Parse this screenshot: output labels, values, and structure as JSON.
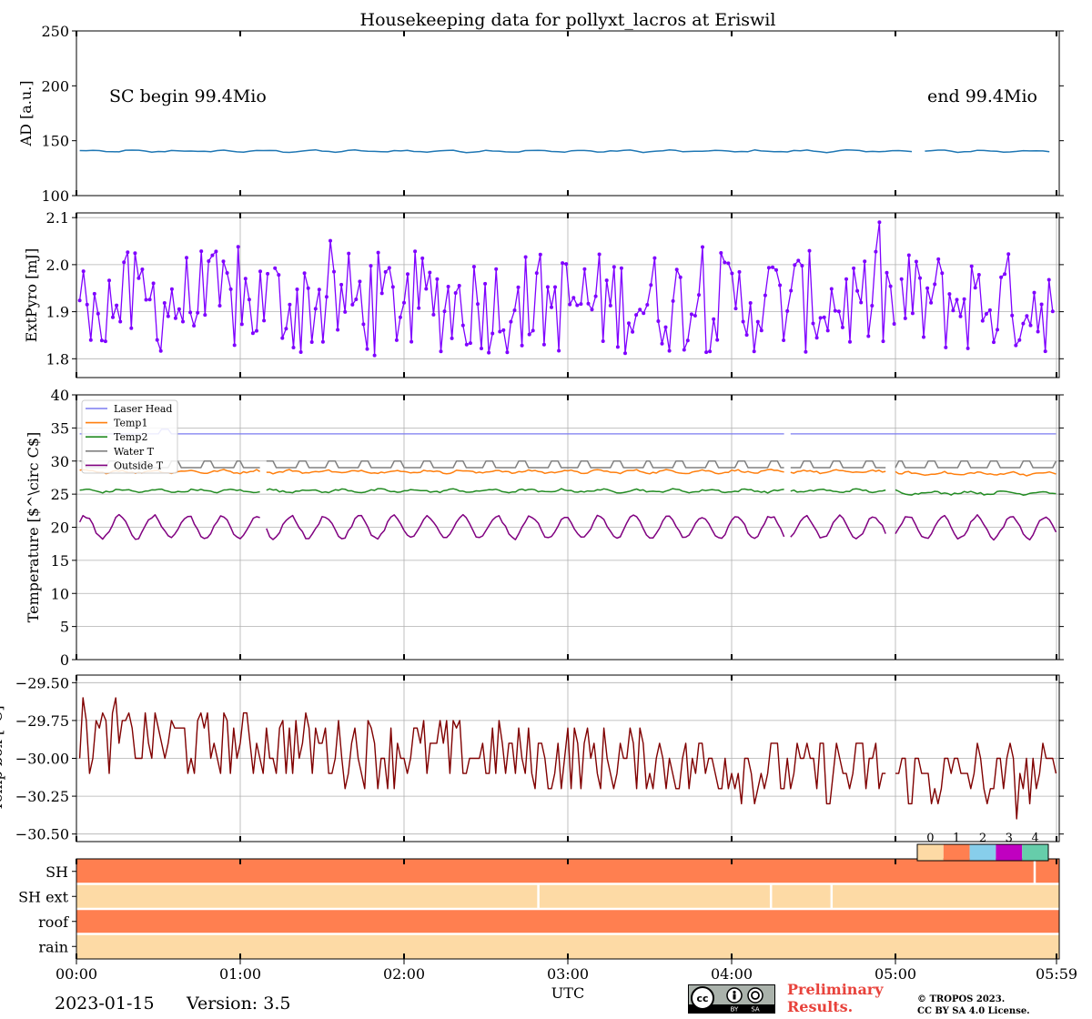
{
  "title": "Housekeeping data for pollyxt_lacros at Eriswil",
  "time_axis": {
    "xlabel": "UTC",
    "ticks": [
      "00:00",
      "01:00",
      "02:00",
      "03:00",
      "04:00",
      "05:00",
      "05:59"
    ]
  },
  "footer": {
    "date": "2023-01-15",
    "version": "Version: 3.5",
    "preliminary_line1": "Preliminary",
    "preliminary_line2": "Results.",
    "copyright_line1": "© TROPOS 2023.",
    "copyright_line2": "CC BY SA 4.0 License.",
    "license_badge": "cc BY SA"
  },
  "colors": {
    "ad": "#1f77b4",
    "pyro": "#7f00ff",
    "laser_head": "#7b7bf0",
    "temp1": "#ff7f0e",
    "temp2": "#228b22",
    "water_t": "#808080",
    "outside_t": "#800080",
    "temp_box": "#800000",
    "state0": "#fddaa5",
    "state1": "#ff7f50",
    "state2": "#87ceeb",
    "state3": "#c000c0",
    "state4": "#66cdaa"
  },
  "chart_data": [
    {
      "type": "line",
      "panel": "ad",
      "ylabel": "AD [a.u.]",
      "ylim": [
        100,
        250
      ],
      "yticks": [
        100,
        150,
        200,
        250
      ],
      "annotations": [
        "SC begin 99.4Mio",
        "end 99.4Mio"
      ],
      "series": [
        {
          "name": "AD",
          "mean": 140.5,
          "amplitude": 1.2,
          "gap": [
            5.13,
            5.17
          ]
        }
      ]
    },
    {
      "type": "line",
      "panel": "pyro",
      "ylabel": "ExtPyro [mJ]",
      "ylim": [
        1.76,
        2.11
      ],
      "yticks": [
        "1.8",
        "1.9",
        "2.0",
        "2.1"
      ],
      "y_values": [
        1.8,
        1.9,
        2.0,
        2.1
      ],
      "series": [
        {
          "name": "ExtPyro",
          "mean": 1.92,
          "range": [
            1.77,
            2.09
          ],
          "markers": true,
          "gaps": [
            [
              1.17,
              1.2
            ],
            [
              5.0,
              5.02
            ]
          ]
        }
      ]
    },
    {
      "type": "line",
      "panel": "temperature",
      "ylabel": "Temperature [$^\\circ C$]",
      "ylim": [
        0,
        40
      ],
      "yticks": [
        0,
        5,
        10,
        15,
        20,
        25,
        30,
        35,
        40
      ],
      "legend": [
        "Laser Head",
        "Temp1",
        "Temp2",
        "Water T",
        "Outside T"
      ],
      "series": [
        {
          "name": "Laser Head",
          "mean": 34.1,
          "peak": 34.8
        },
        {
          "name": "Temp1",
          "mean": 28.4,
          "range": [
            27.8,
            29.0
          ]
        },
        {
          "name": "Temp2",
          "mean": 25.5,
          "range": [
            24.9,
            26.0
          ]
        },
        {
          "name": "Water T",
          "base": 29.0,
          "pulse_peak": 30.0
        },
        {
          "name": "Outside T",
          "mean": 20.0,
          "range": [
            17.5,
            22.0
          ]
        }
      ]
    },
    {
      "type": "line",
      "panel": "temp_box",
      "ylabel": "Temp box [°C]",
      "ylim": [
        -30.55,
        -29.45
      ],
      "yticks": [
        "−29.50",
        "−29.75",
        "−30.00",
        "−30.25",
        "−30.50"
      ],
      "y_values": [
        -29.5,
        -29.75,
        -30.0,
        -30.25,
        -30.5
      ],
      "series": [
        {
          "name": "Temp box",
          "start_mean": -29.85,
          "end_mean": -30.15,
          "range": [
            -30.48,
            -29.5
          ]
        }
      ]
    },
    {
      "type": "heatmap",
      "panel": "status",
      "rows": [
        "SH",
        "SH ext",
        "roof",
        "rain"
      ],
      "colorbar_labels": [
        "0",
        "1",
        "2",
        "3",
        "4"
      ],
      "rows_state": {
        "SH": 1,
        "SH ext": 0,
        "roof": 1,
        "rain": 0
      },
      "separators": {
        "SH": [
          5.85
        ],
        "SH ext": [
          2.82,
          4.24,
          4.61
        ]
      }
    }
  ]
}
